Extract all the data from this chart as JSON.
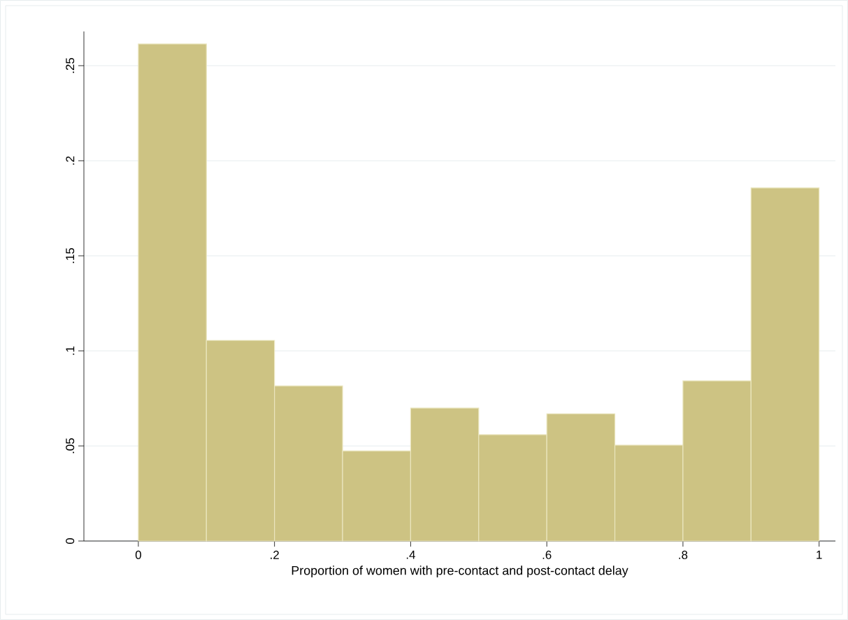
{
  "chart_data": {
    "type": "histogram",
    "xlabel": "Proportion of women with pre-contact and post-contact delay",
    "bins": [
      0,
      0.1,
      0.2,
      0.3,
      0.4,
      0.5,
      0.6,
      0.7,
      0.8,
      0.9,
      1.0
    ],
    "values": [
      0.2614,
      0.1055,
      0.0816,
      0.0474,
      0.0699,
      0.0559,
      0.0669,
      0.0504,
      0.0842,
      0.1857
    ],
    "color": "#cdc383",
    "xlim": [
      -0.08,
      1.024
    ],
    "ylim": [
      0,
      0.268
    ],
    "xticks": [
      0,
      {
        "value": 0.2,
        "label": ".2"
      },
      {
        "value": 0.4,
        "label": ".4"
      },
      {
        "value": 0.6,
        "label": ".6"
      },
      {
        "value": 0.8,
        "label": ".8"
      },
      1
    ],
    "yticks": [
      0,
      {
        "value": 0.05,
        "label": ".05"
      },
      {
        "value": 0.1,
        "label": ".1"
      },
      {
        "value": 0.15,
        "label": ".15"
      },
      {
        "value": 0.2,
        "label": ".2"
      },
      {
        "value": 0.25,
        "label": ".25"
      }
    ],
    "grid": "y"
  }
}
